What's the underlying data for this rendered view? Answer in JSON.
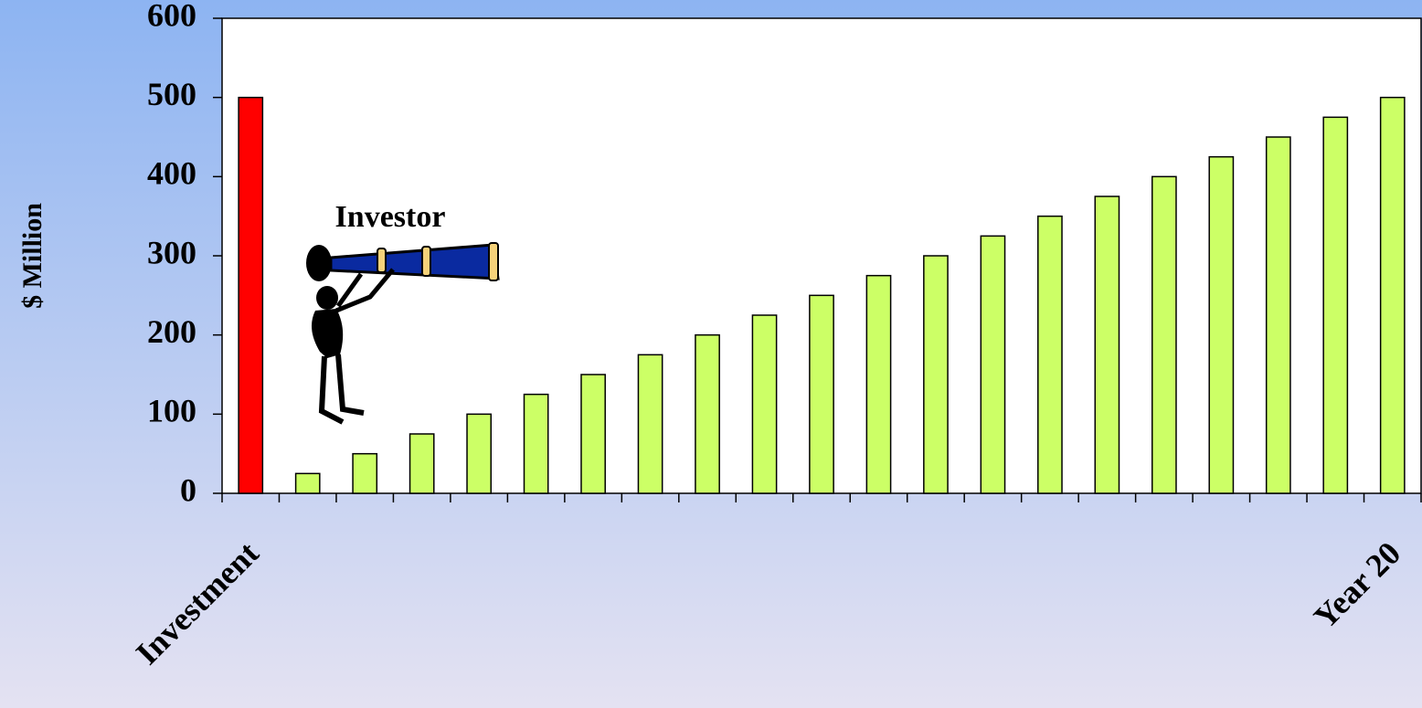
{
  "chart_data": {
    "type": "bar",
    "y_label": "$ Million",
    "annotation": "Investor",
    "categories": [
      "Investment",
      null,
      null,
      null,
      null,
      null,
      null,
      null,
      null,
      null,
      null,
      null,
      null,
      null,
      null,
      null,
      null,
      null,
      null,
      null,
      "Year 20"
    ],
    "values": [
      500,
      25,
      50,
      75,
      100,
      125,
      150,
      175,
      200,
      225,
      250,
      275,
      300,
      325,
      350,
      375,
      400,
      425,
      450,
      475,
      500
    ],
    "colors": [
      "#ff0000",
      "#ccff66",
      "#ccff66",
      "#ccff66",
      "#ccff66",
      "#ccff66",
      "#ccff66",
      "#ccff66",
      "#ccff66",
      "#ccff66",
      "#ccff66",
      "#ccff66",
      "#ccff66",
      "#ccff66",
      "#ccff66",
      "#ccff66",
      "#ccff66",
      "#ccff66",
      "#ccff66",
      "#ccff66",
      "#ccff66"
    ],
    "ylim": [
      0,
      600
    ],
    "yticks": [
      0,
      100,
      200,
      300,
      400,
      500,
      600
    ],
    "grid": false
  }
}
